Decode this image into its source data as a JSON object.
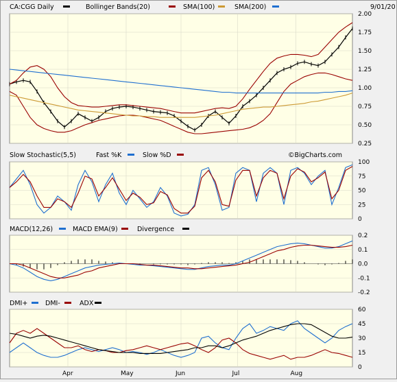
{
  "header": {
    "symbol": "CA:CGG Daily",
    "date": "9/01/20"
  },
  "watermark": "©BigCharts.com",
  "colors": {
    "bg": "#ffffe6",
    "black": "#000000",
    "sma100_bollinger": "#990000",
    "sma200": "#cc9933",
    "blue": "#1f6fd0",
    "grid": "#d8d8c8"
  },
  "chart_data": [
    {
      "type": "line",
      "panel": "price",
      "legend": [
        {
          "name": "CA:CGG Daily",
          "color": "#000000"
        },
        {
          "name": "Bollinger Bands(20)",
          "color": "#990000"
        },
        {
          "name": "SMA(100)",
          "color": "#990000"
        },
        {
          "name": "SMA(200)",
          "color": "#1f6fd0"
        }
      ],
      "y_ticks": [
        "2.00",
        "1.75",
        "1.50",
        "1.25",
        "1.00",
        "0.75",
        "0.50",
        "0.25"
      ],
      "ylim": [
        0.25,
        2.0
      ],
      "x_ticks": [
        "Apr",
        "May",
        "Jun",
        "Jul",
        "Aug"
      ],
      "series": [
        {
          "name": "Price",
          "values": [
            1.05,
            1.08,
            1.1,
            1.08,
            0.95,
            0.8,
            0.68,
            0.55,
            0.47,
            0.55,
            0.65,
            0.6,
            0.55,
            0.6,
            0.68,
            0.72,
            0.74,
            0.75,
            0.74,
            0.72,
            0.7,
            0.68,
            0.67,
            0.66,
            0.62,
            0.55,
            0.48,
            0.43,
            0.5,
            0.62,
            0.68,
            0.6,
            0.52,
            0.62,
            0.75,
            0.82,
            0.9,
            1.0,
            1.1,
            1.2,
            1.25,
            1.28,
            1.33,
            1.35,
            1.32,
            1.3,
            1.35,
            1.45,
            1.55,
            1.68,
            1.8
          ]
        },
        {
          "name": "Bollinger Upper",
          "values": [
            1.05,
            1.1,
            1.2,
            1.28,
            1.3,
            1.25,
            1.15,
            1.0,
            0.88,
            0.8,
            0.76,
            0.75,
            0.74,
            0.74,
            0.75,
            0.76,
            0.77,
            0.77,
            0.76,
            0.75,
            0.74,
            0.73,
            0.72,
            0.7,
            0.68,
            0.66,
            0.66,
            0.66,
            0.68,
            0.7,
            0.72,
            0.73,
            0.72,
            0.75,
            0.85,
            0.98,
            1.1,
            1.22,
            1.33,
            1.4,
            1.43,
            1.45,
            1.45,
            1.44,
            1.42,
            1.45,
            1.55,
            1.65,
            1.75,
            1.82,
            1.88
          ]
        },
        {
          "name": "Bollinger Lower",
          "values": [
            0.95,
            0.9,
            0.75,
            0.6,
            0.5,
            0.45,
            0.42,
            0.4,
            0.4,
            0.42,
            0.46,
            0.5,
            0.53,
            0.56,
            0.58,
            0.6,
            0.62,
            0.63,
            0.63,
            0.62,
            0.6,
            0.58,
            0.56,
            0.52,
            0.48,
            0.44,
            0.4,
            0.38,
            0.38,
            0.39,
            0.4,
            0.41,
            0.42,
            0.43,
            0.44,
            0.46,
            0.5,
            0.56,
            0.65,
            0.8,
            0.95,
            1.05,
            1.1,
            1.15,
            1.18,
            1.2,
            1.2,
            1.18,
            1.15,
            1.12,
            1.1
          ]
        },
        {
          "name": "SMA(100)",
          "values": [
            0.9,
            0.88,
            0.86,
            0.84,
            0.82,
            0.8,
            0.78,
            0.76,
            0.74,
            0.72,
            0.7,
            0.69,
            0.68,
            0.67,
            0.66,
            0.65,
            0.64,
            0.63,
            0.62,
            0.62,
            0.61,
            0.61,
            0.6,
            0.6,
            0.6,
            0.6,
            0.6,
            0.6,
            0.61,
            0.62,
            0.63,
            0.65,
            0.67,
            0.69,
            0.71,
            0.72,
            0.73,
            0.74,
            0.74,
            0.75,
            0.76,
            0.77,
            0.78,
            0.79,
            0.81,
            0.82,
            0.84,
            0.86,
            0.88,
            0.9,
            0.93
          ]
        },
        {
          "name": "SMA(200)",
          "values": [
            1.25,
            1.24,
            1.23,
            1.22,
            1.21,
            1.2,
            1.19,
            1.18,
            1.17,
            1.16,
            1.15,
            1.14,
            1.13,
            1.12,
            1.11,
            1.1,
            1.09,
            1.08,
            1.07,
            1.06,
            1.05,
            1.04,
            1.03,
            1.02,
            1.01,
            1.0,
            0.99,
            0.98,
            0.97,
            0.96,
            0.95,
            0.94,
            0.94,
            0.93,
            0.93,
            0.93,
            0.93,
            0.93,
            0.93,
            0.93,
            0.93,
            0.93,
            0.93,
            0.93,
            0.93,
            0.93,
            0.94,
            0.94,
            0.95,
            0.95,
            0.96
          ]
        }
      ]
    },
    {
      "type": "line",
      "panel": "stochastic",
      "legend": [
        {
          "name": "Slow Stochastic(5,5)",
          "color": "#000000"
        },
        {
          "name": "Fast %K",
          "color": "#1f6fd0"
        },
        {
          "name": "Slow %D",
          "color": "#990000"
        }
      ],
      "y_ticks": [
        "100",
        "75",
        "50",
        "25",
        "0"
      ],
      "ylim": [
        0,
        100
      ],
      "series": [
        {
          "name": "Fast %K",
          "values": [
            55,
            70,
            85,
            60,
            25,
            10,
            20,
            40,
            30,
            15,
            60,
            85,
            65,
            30,
            60,
            80,
            45,
            25,
            50,
            35,
            20,
            30,
            55,
            40,
            10,
            5,
            8,
            25,
            85,
            90,
            60,
            15,
            20,
            80,
            90,
            85,
            30,
            80,
            90,
            80,
            25,
            85,
            90,
            80,
            60,
            75,
            85,
            25,
            55,
            90,
            95
          ]
        },
        {
          "name": "Slow %D",
          "values": [
            55,
            65,
            78,
            65,
            40,
            20,
            20,
            35,
            30,
            20,
            45,
            75,
            70,
            40,
            55,
            72,
            52,
            32,
            45,
            38,
            25,
            28,
            48,
            42,
            18,
            10,
            10,
            22,
            72,
            85,
            65,
            25,
            22,
            68,
            85,
            85,
            40,
            72,
            85,
            80,
            35,
            75,
            88,
            82,
            65,
            72,
            82,
            35,
            50,
            85,
            92
          ]
        }
      ]
    },
    {
      "type": "line",
      "panel": "macd",
      "legend": [
        {
          "name": "MACD(12,26)",
          "color": "#1f6fd0"
        },
        {
          "name": "MACD EMA(9)",
          "color": "#990000"
        },
        {
          "name": "Divergence",
          "color": "#000000"
        }
      ],
      "y_ticks": [
        "0.2",
        "0.1",
        "0.0",
        "-0.1",
        "-0.2"
      ],
      "ylim": [
        -0.2,
        0.2
      ],
      "series": [
        {
          "name": "MACD(12,26)",
          "values": [
            0.0,
            -0.01,
            -0.03,
            -0.06,
            -0.09,
            -0.11,
            -0.12,
            -0.11,
            -0.09,
            -0.07,
            -0.05,
            -0.03,
            -0.02,
            -0.01,
            -0.005,
            0.0,
            0.005,
            0.0,
            -0.005,
            -0.01,
            -0.01,
            -0.015,
            -0.02,
            -0.025,
            -0.03,
            -0.035,
            -0.04,
            -0.04,
            -0.03,
            -0.02,
            -0.015,
            -0.01,
            -0.01,
            0.0,
            0.02,
            0.04,
            0.06,
            0.08,
            0.1,
            0.12,
            0.13,
            0.14,
            0.145,
            0.14,
            0.13,
            0.12,
            0.11,
            0.11,
            0.12,
            0.14,
            0.16
          ]
        },
        {
          "name": "MACD EMA(9)",
          "values": [
            0.0,
            0.0,
            -0.01,
            -0.03,
            -0.05,
            -0.07,
            -0.09,
            -0.1,
            -0.1,
            -0.09,
            -0.08,
            -0.06,
            -0.05,
            -0.03,
            -0.02,
            -0.01,
            0.0,
            0.0,
            0.0,
            -0.005,
            -0.01,
            -0.01,
            -0.015,
            -0.02,
            -0.025,
            -0.03,
            -0.03,
            -0.035,
            -0.035,
            -0.03,
            -0.025,
            -0.02,
            -0.015,
            -0.01,
            0.0,
            0.01,
            0.03,
            0.05,
            0.07,
            0.09,
            0.1,
            0.115,
            0.125,
            0.13,
            0.13,
            0.125,
            0.12,
            0.115,
            0.115,
            0.12,
            0.13
          ]
        }
      ]
    },
    {
      "type": "line",
      "panel": "dmi",
      "legend": [
        {
          "name": "DMI+",
          "color": "#1f6fd0"
        },
        {
          "name": "DMI-",
          "color": "#990000"
        },
        {
          "name": "ADX",
          "color": "#000000"
        }
      ],
      "y_ticks": [
        "60",
        "45",
        "30",
        "15",
        "0"
      ],
      "ylim": [
        0,
        60
      ],
      "series": [
        {
          "name": "DMI+",
          "values": [
            15,
            20,
            25,
            20,
            15,
            12,
            10,
            10,
            12,
            15,
            18,
            20,
            18,
            16,
            18,
            20,
            18,
            15,
            16,
            15,
            13,
            15,
            18,
            15,
            12,
            10,
            12,
            15,
            30,
            32,
            25,
            20,
            18,
            30,
            40,
            45,
            35,
            38,
            42,
            40,
            38,
            45,
            48,
            40,
            35,
            30,
            25,
            30,
            38,
            42,
            45
          ]
        },
        {
          "name": "DMI-",
          "values": [
            25,
            35,
            38,
            35,
            40,
            35,
            30,
            25,
            20,
            20,
            22,
            18,
            16,
            18,
            17,
            15,
            15,
            17,
            18,
            20,
            22,
            20,
            18,
            20,
            22,
            24,
            25,
            22,
            18,
            15,
            20,
            28,
            30,
            25,
            18,
            14,
            12,
            10,
            8,
            10,
            12,
            8,
            10,
            10,
            12,
            15,
            18,
            15,
            14,
            12,
            10
          ]
        },
        {
          "name": "ADX",
          "values": [
            35,
            34,
            32,
            30,
            32,
            33,
            32,
            30,
            28,
            26,
            24,
            22,
            20,
            18,
            17,
            16,
            15,
            15,
            15,
            14,
            14,
            14,
            14,
            15,
            16,
            17,
            18,
            20,
            20,
            22,
            22,
            20,
            22,
            25,
            28,
            30,
            32,
            35,
            38,
            40,
            42,
            44,
            45,
            45,
            44,
            40,
            36,
            32,
            30,
            30,
            31
          ]
        }
      ]
    }
  ]
}
